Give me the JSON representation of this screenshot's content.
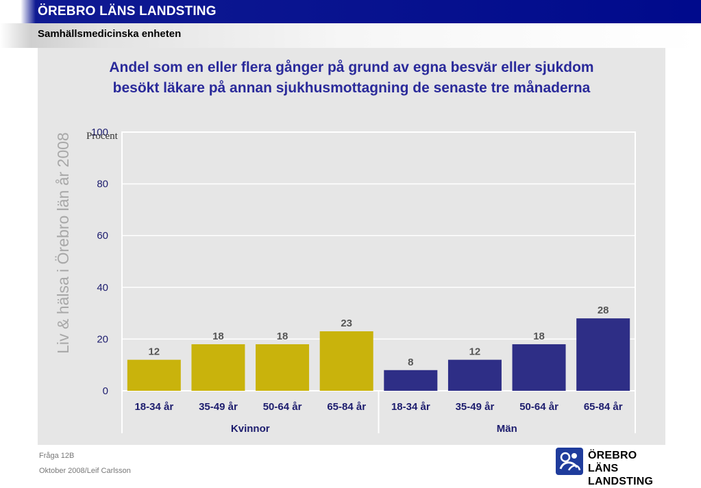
{
  "header": {
    "brand": "ÖREBRO LÄNS LANDSTING",
    "unit": "Samhällsmedicinska enheten"
  },
  "side_label": "Liv & hälsa i Örebro län år 2008",
  "footer": {
    "question": "Fråga 12B",
    "date_author": "Oktober 2008/Leif Carlsson"
  },
  "logo": {
    "icon": "orebro-lans-landsting-logo-icon",
    "line1": "ÖREBRO LÄNS",
    "line2": "LANDSTING"
  },
  "colors": {
    "header_blue": "#000a8c",
    "title": "#2a2a9a",
    "women": "#c9b30c",
    "men": "#2e2e86",
    "axis_text": "#1d1d6e"
  },
  "chart_data": {
    "type": "bar",
    "title_lines": [
      "Andel som en eller flera gånger på grund av egna besvär eller sjukdom",
      "besökt läkare på annan sjukhusmottagning de senaste tre månaderna"
    ],
    "ylabel": "Procent",
    "ylim": [
      0,
      100
    ],
    "yticks": [
      0,
      20,
      40,
      60,
      80,
      100
    ],
    "grid": true,
    "groups": [
      {
        "name": "Kvinnor",
        "color": "#c9b30c",
        "categories": [
          "18-34 år",
          "35-49 år",
          "50-64 år",
          "65-84 år"
        ],
        "values": [
          12,
          18,
          18,
          23
        ]
      },
      {
        "name": "Män",
        "color": "#2e2e86",
        "categories": [
          "18-34 år",
          "35-49 år",
          "50-64 år",
          "65-84 år"
        ],
        "values": [
          8,
          12,
          18,
          28
        ]
      }
    ]
  }
}
